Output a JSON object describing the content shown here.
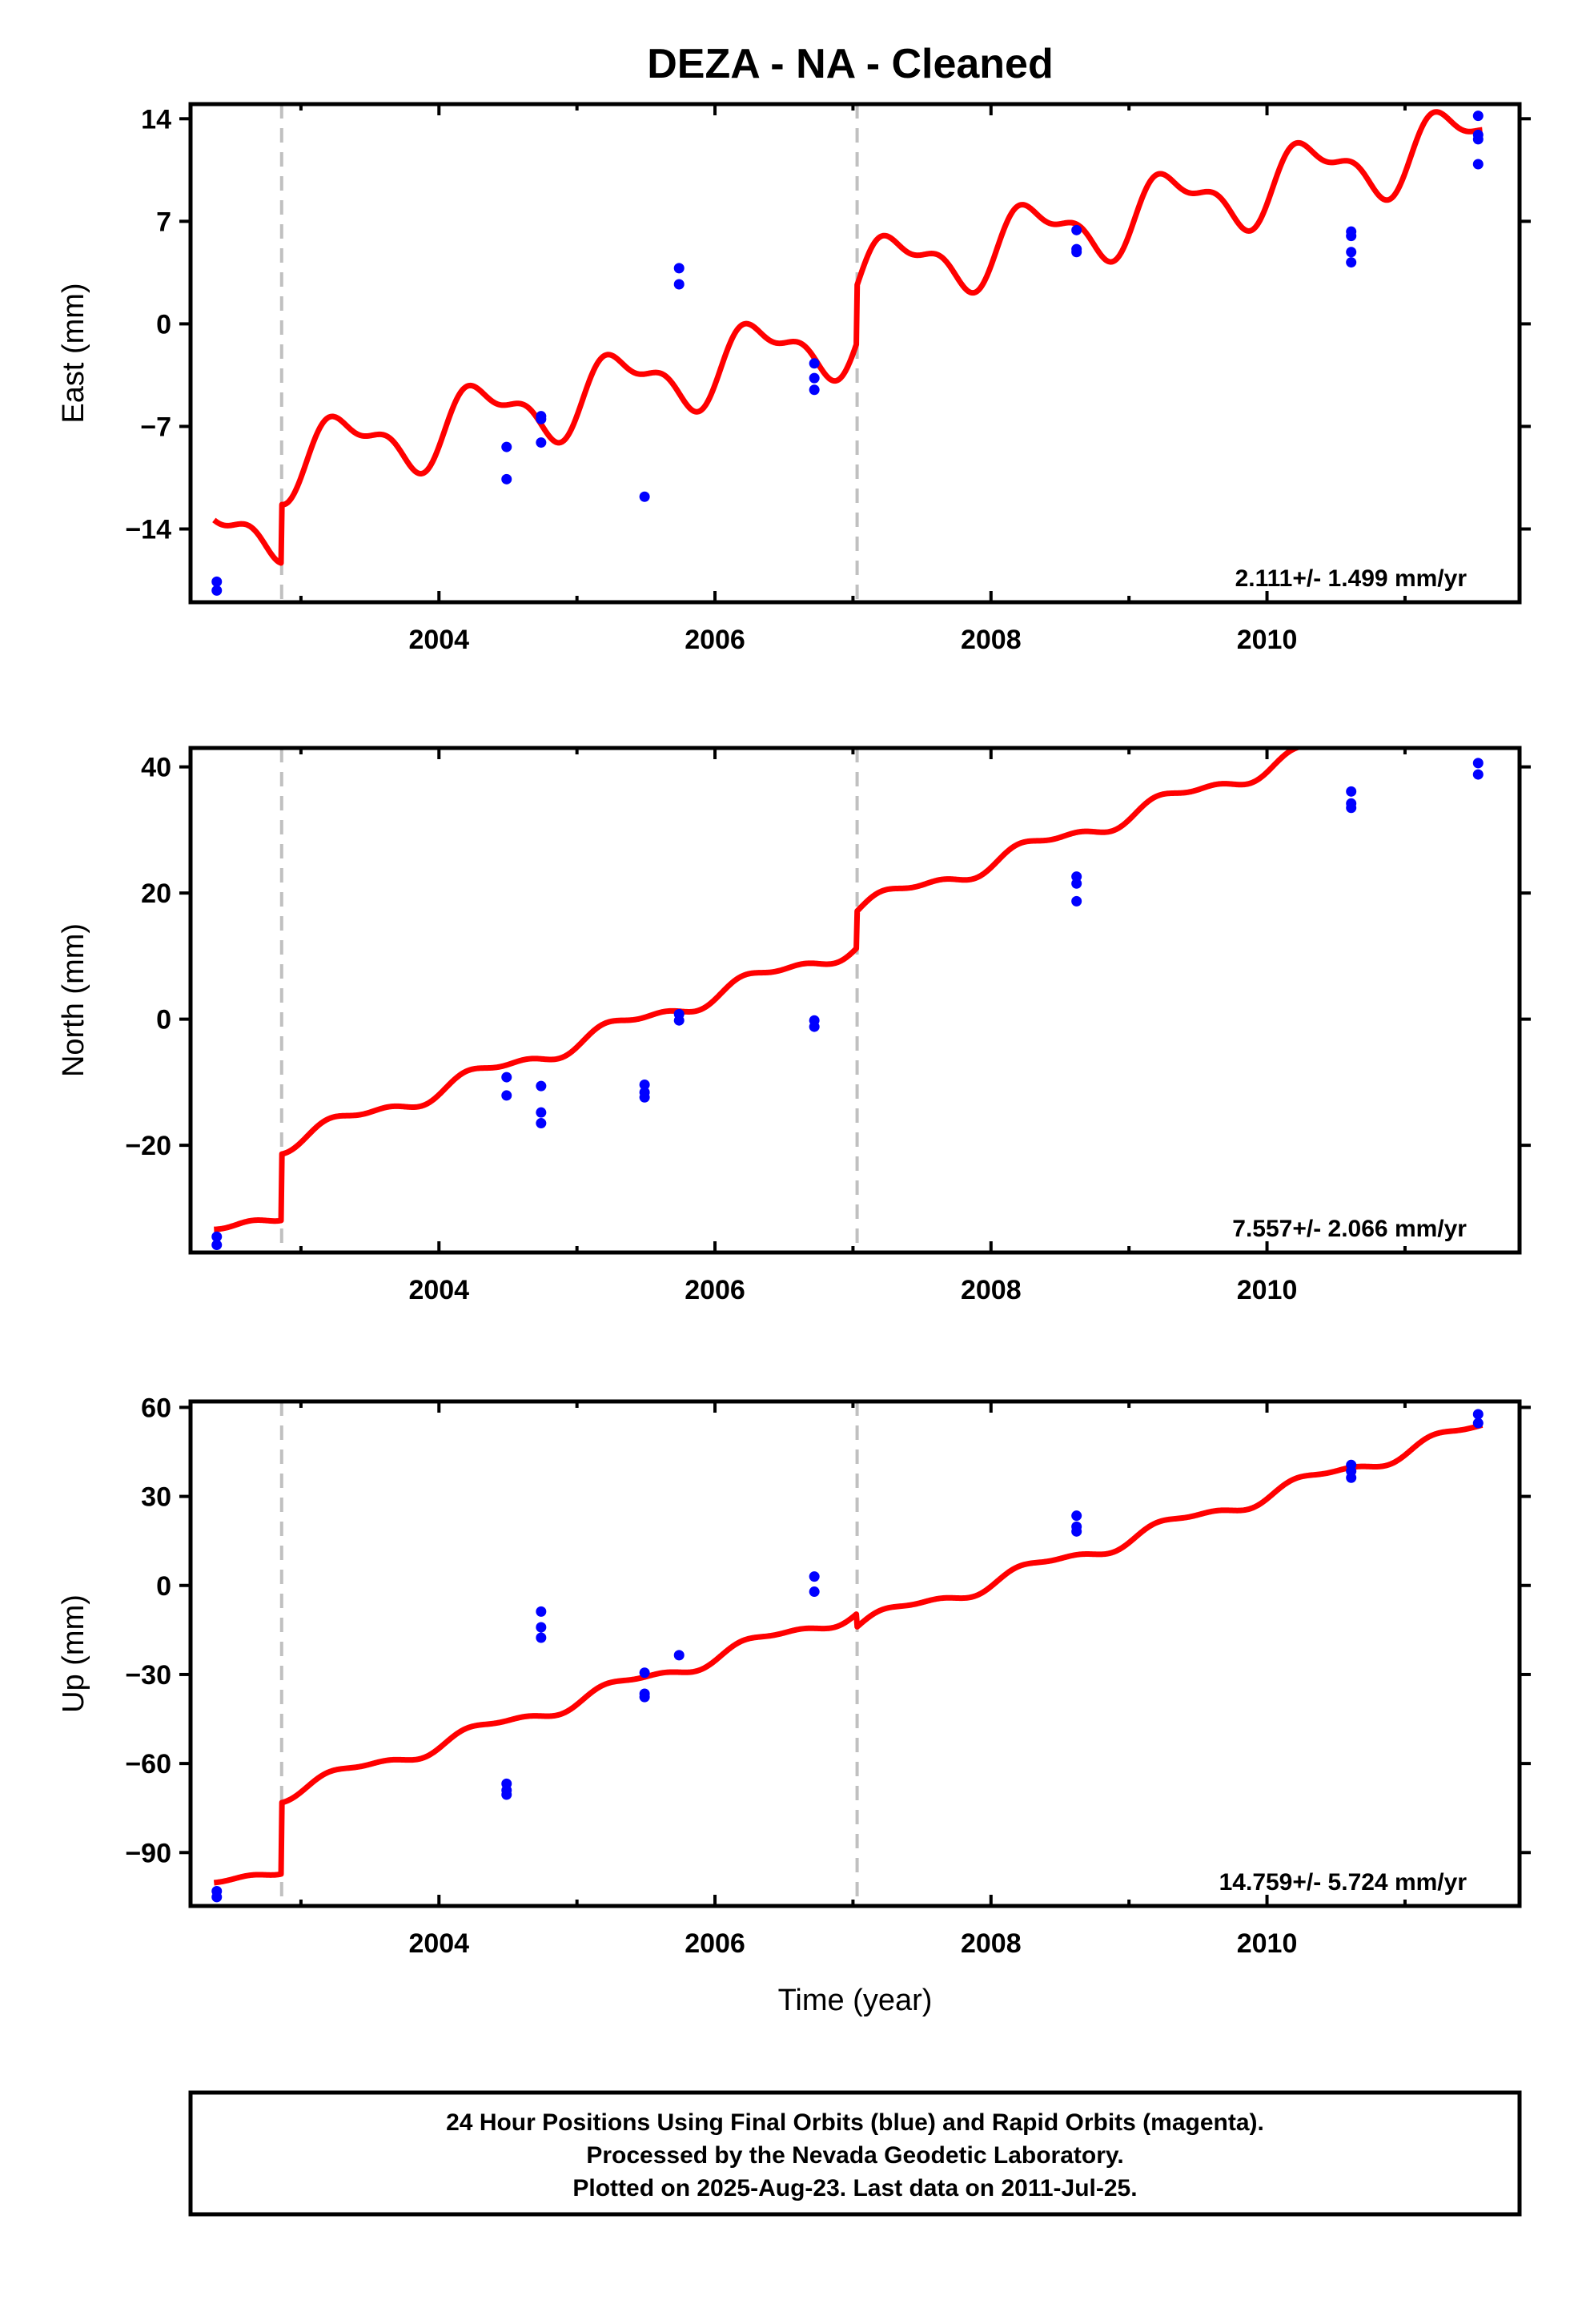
{
  "title": "DEZA  - NA - Cleaned",
  "footer": {
    "lines": [
      "24 Hour Positions Using Final Orbits (blue) and Rapid Orbits (magenta).",
      "Processed by the Nevada Geodetic Laboratory.",
      "Plotted on 2025-Aug-23. Last data on 2011-Jul-25."
    ]
  },
  "colors": {
    "model": "#ff0000",
    "final_orbits": "#0000ff",
    "steps": "#c0c0c0"
  },
  "chart_data": [
    {
      "type": "scatter",
      "name": "east",
      "ylabel": "East (mm)",
      "xlabel": "",
      "xlim": [
        2002.2,
        2011.83
      ],
      "ylim": [
        -19,
        15
      ],
      "yticks": [
        -14,
        -7,
        0,
        7,
        14
      ],
      "xticks": [
        2004,
        2006,
        2008,
        2010
      ],
      "rate_label": "2.111+/- 1.499 mm/yr",
      "step_epochs": [
        2002.86,
        2007.03
      ],
      "points": [
        [
          2002.39,
          -17.6
        ],
        [
          2002.39,
          -18.2
        ],
        [
          2004.49,
          -8.4
        ],
        [
          2004.49,
          -10.6
        ],
        [
          2004.74,
          -6.3
        ],
        [
          2004.74,
          -6.5
        ],
        [
          2004.74,
          -8.1
        ],
        [
          2005.49,
          -11.8
        ],
        [
          2005.74,
          3.8
        ],
        [
          2005.74,
          2.7
        ],
        [
          2006.72,
          -2.7
        ],
        [
          2006.72,
          -3.7
        ],
        [
          2006.72,
          -4.5
        ],
        [
          2008.62,
          6.4
        ],
        [
          2008.62,
          5.1
        ],
        [
          2008.62,
          4.9
        ],
        [
          2010.61,
          6.3
        ],
        [
          2010.61,
          6.0
        ],
        [
          2010.61,
          4.9
        ],
        [
          2010.61,
          4.2
        ],
        [
          2011.53,
          14.2
        ],
        [
          2011.53,
          12.9
        ],
        [
          2011.53,
          12.6
        ],
        [
          2011.53,
          10.9
        ]
      ],
      "model": {
        "offset": -15.3,
        "rate": 2.111,
        "anchor": 2002.0,
        "amp_sin1": 1.9,
        "amp_cos1": -0.9,
        "amp_sin2": 0.9,
        "amp_cos2": -0.4,
        "steps": [
          [
            2002.86,
            4.0
          ],
          [
            2007.03,
            3.9
          ]
        ]
      }
    },
    {
      "type": "scatter",
      "name": "north",
      "ylabel": "North (mm)",
      "xlabel": "",
      "xlim": [
        2002.2,
        2011.83
      ],
      "ylim": [
        -37,
        43
      ],
      "yticks": [
        -20,
        0,
        20,
        40
      ],
      "xticks": [
        2004,
        2006,
        2008,
        2010
      ],
      "rate_label": "7.557+/- 2.066 mm/yr",
      "step_epochs": [
        2002.86,
        2007.03
      ],
      "points": [
        [
          2002.39,
          -34.5
        ],
        [
          2002.39,
          -35.8
        ],
        [
          2004.49,
          -9.2
        ],
        [
          2004.49,
          -12.1
        ],
        [
          2004.74,
          -10.6
        ],
        [
          2004.74,
          -14.8
        ],
        [
          2004.74,
          -16.5
        ],
        [
          2005.49,
          -10.4
        ],
        [
          2005.49,
          -11.6
        ],
        [
          2005.49,
          -12.4
        ],
        [
          2005.74,
          0.8
        ],
        [
          2005.74,
          -0.2
        ],
        [
          2006.72,
          -0.2
        ],
        [
          2006.72,
          -1.2
        ],
        [
          2008.62,
          22.6
        ],
        [
          2008.62,
          21.5
        ],
        [
          2008.62,
          18.7
        ],
        [
          2010.61,
          36.1
        ],
        [
          2010.61,
          34.2
        ],
        [
          2010.61,
          33.5
        ],
        [
          2011.53,
          40.6
        ],
        [
          2011.53,
          38.8
        ]
      ],
      "model": {
        "offset": -36.8,
        "rate": 7.557,
        "anchor": 2002.0,
        "amp_sin1": 1.1,
        "amp_cos1": -0.5,
        "amp_sin2": 0.5,
        "amp_cos2": -0.3,
        "steps": [
          [
            2002.86,
            10.5
          ],
          [
            2007.03,
            5.8
          ]
        ]
      }
    },
    {
      "type": "scatter",
      "name": "up",
      "ylabel": "Up (mm)",
      "xlabel": "Time (year)",
      "xlim": [
        2002.2,
        2011.83
      ],
      "ylim": [
        -108,
        62
      ],
      "yticks": [
        -90,
        -60,
        -30,
        0,
        30,
        60
      ],
      "xticks": [
        2004,
        2006,
        2008,
        2010
      ],
      "rate_label": "14.759+/- 5.724 mm/yr",
      "step_epochs": [
        2002.86,
        2007.03
      ],
      "points": [
        [
          2002.39,
          -103.0
        ],
        [
          2002.39,
          -105.0
        ],
        [
          2004.49,
          -66.8
        ],
        [
          2004.49,
          -69.0
        ],
        [
          2004.49,
          -70.5
        ],
        [
          2004.74,
          -8.8
        ],
        [
          2004.74,
          -14.1
        ],
        [
          2004.74,
          -17.6
        ],
        [
          2005.49,
          -29.4
        ],
        [
          2005.49,
          -36.5
        ],
        [
          2005.49,
          -37.6
        ],
        [
          2005.74,
          -23.5
        ],
        [
          2006.72,
          3.0
        ],
        [
          2006.72,
          -2.1
        ],
        [
          2008.62,
          23.5
        ],
        [
          2008.62,
          19.8
        ],
        [
          2008.62,
          18.2
        ],
        [
          2010.61,
          40.6
        ],
        [
          2010.61,
          38.5
        ],
        [
          2010.61,
          36.3
        ],
        [
          2011.53,
          57.7
        ],
        [
          2011.53,
          54.7
        ]
      ],
      "model": {
        "offset": -107.0,
        "rate": 14.759,
        "anchor": 2002.0,
        "amp_sin1": 2.0,
        "amp_cos1": -1.0,
        "amp_sin2": 0.8,
        "amp_cos2": -0.4,
        "steps": [
          [
            2002.86,
            24.0
          ],
          [
            2007.03,
            -4.5
          ]
        ]
      }
    }
  ]
}
